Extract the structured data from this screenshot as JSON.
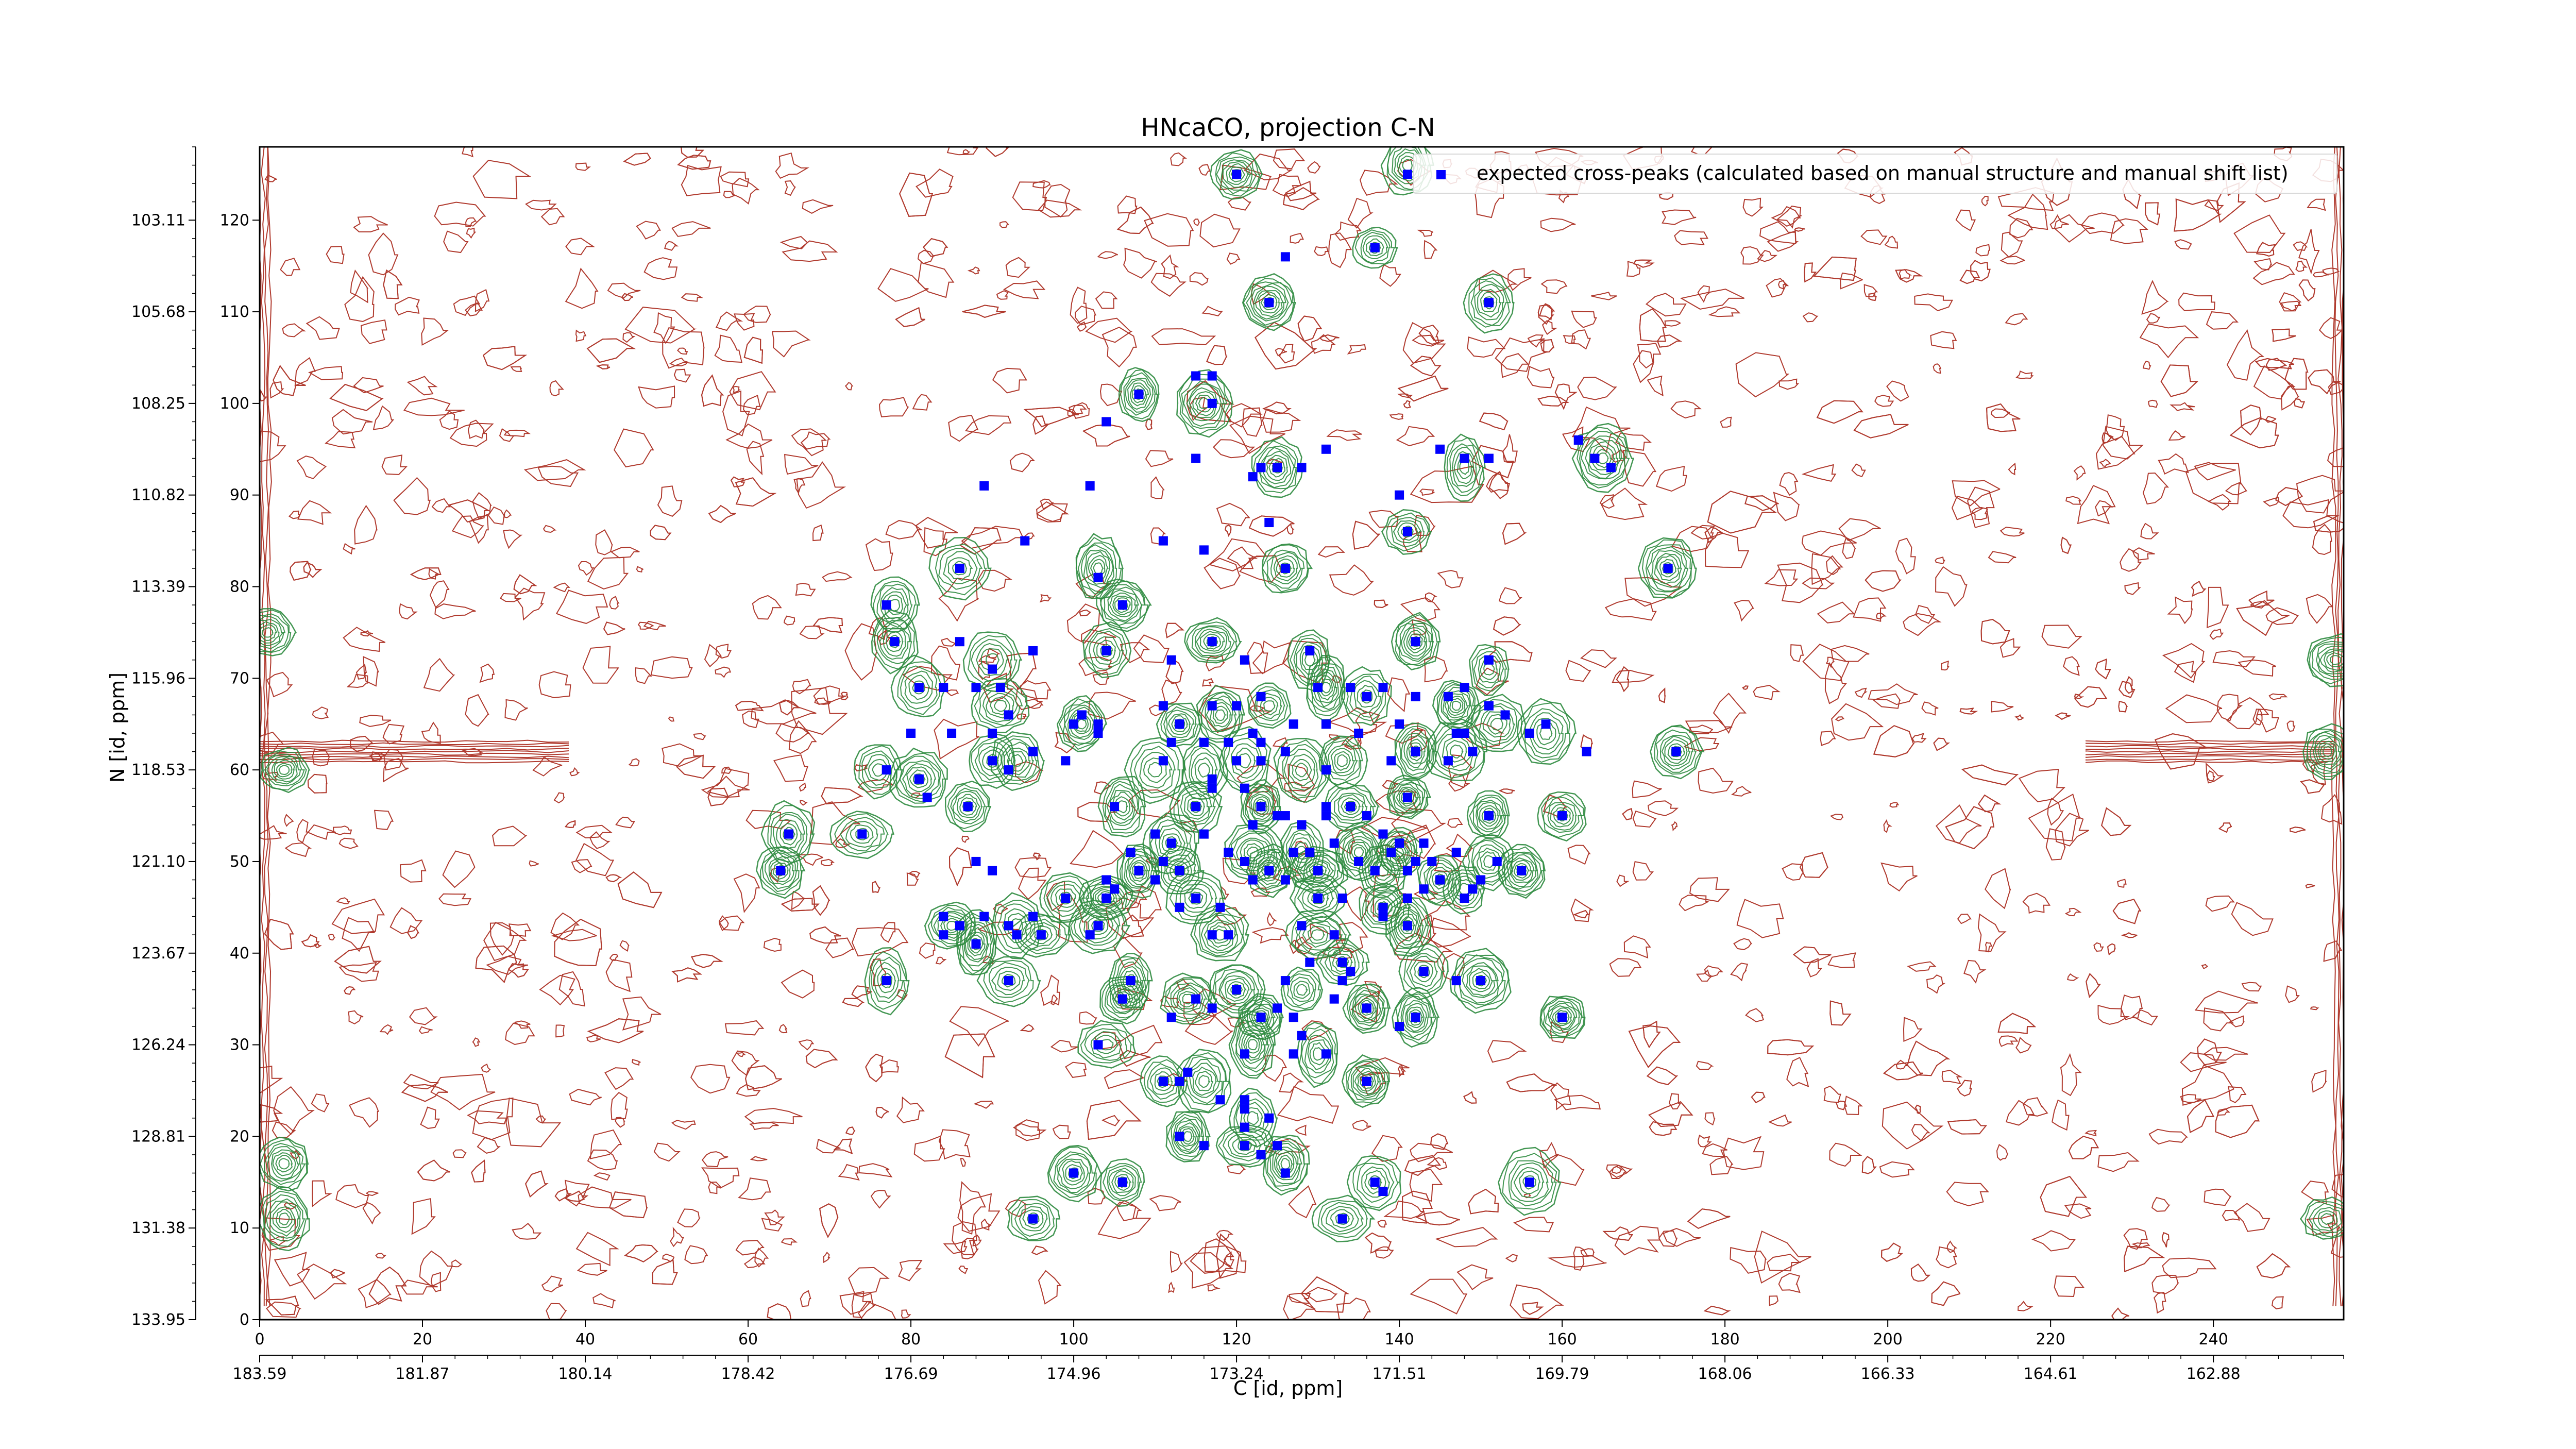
{
  "chart_data": {
    "type": "contour",
    "title": "HNcaCO, projection C-N",
    "xlabel": "C [id, ppm]",
    "ylabel": "N [id, ppm]",
    "legend": [
      "expected cross-peaks (calculated based on manual structure and manual shift list)"
    ],
    "legend_position": "top-right",
    "x_index_range": [
      0,
      256
    ],
    "y_index_range": [
      0,
      128
    ],
    "x_index_ticks": [
      "0",
      "20",
      "40",
      "60",
      "80",
      "100",
      "120",
      "140",
      "160",
      "180",
      "200",
      "220",
      "240"
    ],
    "x_ppm_ticks": [
      "183.59",
      "181.87",
      "180.14",
      "178.42",
      "176.69",
      "174.96",
      "173.24",
      "171.51",
      "169.79",
      "168.06",
      "166.33",
      "164.61",
      "162.88"
    ],
    "y_index_ticks": [
      "0",
      "10",
      "20",
      "30",
      "40",
      "50",
      "60",
      "70",
      "80",
      "90",
      "100",
      "110",
      "120"
    ],
    "y_ppm_ticks": [
      "133.95",
      "131.38",
      "128.81",
      "126.24",
      "123.67",
      "121.10",
      "118.53",
      "115.96",
      "113.39",
      "110.82",
      "108.25",
      "105.68",
      "103.11"
    ],
    "colors": {
      "positive_contours": "#2e8b3f",
      "negative_contours": "#b03a2e",
      "peaks": "#0000ff"
    },
    "expected_peaks": [
      [
        120,
        125
      ],
      [
        141,
        125
      ],
      [
        137,
        117
      ],
      [
        124,
        111
      ],
      [
        151,
        111
      ],
      [
        126,
        116
      ],
      [
        108,
        101
      ],
      [
        115,
        103
      ],
      [
        117,
        103
      ],
      [
        117,
        100
      ],
      [
        104,
        98
      ],
      [
        115,
        94
      ],
      [
        123,
        93
      ],
      [
        125,
        93
      ],
      [
        128,
        93
      ],
      [
        131,
        95
      ],
      [
        145,
        95
      ],
      [
        148,
        94
      ],
      [
        151,
        94
      ],
      [
        164,
        94
      ],
      [
        162,
        96
      ],
      [
        166,
        93
      ],
      [
        122,
        92
      ],
      [
        140,
        90
      ],
      [
        89,
        91
      ],
      [
        102,
        91
      ],
      [
        124,
        87
      ],
      [
        141,
        86
      ],
      [
        111,
        85
      ],
      [
        116,
        84
      ],
      [
        94,
        85
      ],
      [
        86,
        82
      ],
      [
        103,
        81
      ],
      [
        126,
        82
      ],
      [
        173,
        82
      ],
      [
        77,
        78
      ],
      [
        106,
        78
      ],
      [
        78,
        74
      ],
      [
        117,
        74
      ],
      [
        112,
        72
      ],
      [
        121,
        72
      ],
      [
        142,
        74
      ],
      [
        129,
        73
      ],
      [
        151,
        72
      ],
      [
        104,
        73
      ],
      [
        86,
        74
      ],
      [
        90,
        71
      ],
      [
        95,
        73
      ],
      [
        81,
        69
      ],
      [
        84,
        69
      ],
      [
        88,
        69
      ],
      [
        91,
        69
      ],
      [
        92,
        66
      ],
      [
        100,
        65
      ],
      [
        101,
        66
      ],
      [
        103,
        65
      ],
      [
        111,
        67
      ],
      [
        113,
        65
      ],
      [
        117,
        67
      ],
      [
        120,
        67
      ],
      [
        123,
        68
      ],
      [
        130,
        69
      ],
      [
        134,
        69
      ],
      [
        136,
        68
      ],
      [
        138,
        69
      ],
      [
        142,
        68
      ],
      [
        146,
        68
      ],
      [
        148,
        69
      ],
      [
        151,
        67
      ],
      [
        153,
        66
      ],
      [
        158,
        65
      ],
      [
        163,
        62
      ],
      [
        174,
        62
      ],
      [
        156,
        64
      ],
      [
        80,
        64
      ],
      [
        85,
        64
      ],
      [
        90,
        64
      ],
      [
        103,
        64
      ],
      [
        112,
        63
      ],
      [
        116,
        63
      ],
      [
        119,
        63
      ],
      [
        122,
        64
      ],
      [
        127,
        65
      ],
      [
        131,
        65
      ],
      [
        135,
        64
      ],
      [
        140,
        65
      ],
      [
        148,
        64
      ],
      [
        126,
        62
      ],
      [
        123,
        61
      ],
      [
        123,
        63
      ],
      [
        131,
        60
      ],
      [
        139,
        61
      ],
      [
        142,
        62
      ],
      [
        146,
        61
      ],
      [
        149,
        62
      ],
      [
        147,
        64
      ],
      [
        99,
        61
      ],
      [
        111,
        61
      ],
      [
        117,
        59
      ],
      [
        120,
        61
      ],
      [
        90,
        61
      ],
      [
        92,
        60
      ],
      [
        95,
        62
      ],
      [
        81,
        59
      ],
      [
        77,
        60
      ],
      [
        82,
        57
      ],
      [
        87,
        56
      ],
      [
        105,
        56
      ],
      [
        115,
        56
      ],
      [
        117,
        58
      ],
      [
        121,
        58
      ],
      [
        123,
        56
      ],
      [
        126,
        55
      ],
      [
        131,
        56
      ],
      [
        134,
        56
      ],
      [
        141,
        57
      ],
      [
        151,
        55
      ],
      [
        160,
        55
      ],
      [
        65,
        53
      ],
      [
        74,
        53
      ],
      [
        110,
        53
      ],
      [
        112,
        52
      ],
      [
        116,
        53
      ],
      [
        122,
        54
      ],
      [
        125,
        55
      ],
      [
        128,
        54
      ],
      [
        131,
        55
      ],
      [
        136,
        55
      ],
      [
        138,
        53
      ],
      [
        140,
        52
      ],
      [
        143,
        52
      ],
      [
        147,
        51
      ],
      [
        152,
        50
      ],
      [
        107,
        51
      ],
      [
        111,
        50
      ],
      [
        113,
        49
      ],
      [
        119,
        51
      ],
      [
        121,
        50
      ],
      [
        124,
        49
      ],
      [
        127,
        51
      ],
      [
        129,
        51
      ],
      [
        132,
        52
      ],
      [
        135,
        50
      ],
      [
        139,
        51
      ],
      [
        142,
        50
      ],
      [
        144,
        50
      ],
      [
        88,
        50
      ],
      [
        90,
        49
      ],
      [
        108,
        49
      ],
      [
        110,
        48
      ],
      [
        122,
        48
      ],
      [
        126,
        48
      ],
      [
        130,
        49
      ],
      [
        137,
        49
      ],
      [
        141,
        49
      ],
      [
        143,
        47
      ],
      [
        145,
        48
      ],
      [
        150,
        48
      ],
      [
        155,
        49
      ],
      [
        64,
        49
      ],
      [
        99,
        46
      ],
      [
        104,
        46
      ],
      [
        104,
        48
      ],
      [
        105,
        47
      ],
      [
        113,
        45
      ],
      [
        115,
        46
      ],
      [
        118,
        45
      ],
      [
        130,
        46
      ],
      [
        133,
        46
      ],
      [
        138,
        45
      ],
      [
        141,
        46
      ],
      [
        148,
        46
      ],
      [
        149,
        47
      ],
      [
        84,
        44
      ],
      [
        86,
        43
      ],
      [
        89,
        44
      ],
      [
        92,
        43
      ],
      [
        95,
        44
      ],
      [
        103,
        43
      ],
      [
        117,
        42
      ],
      [
        119,
        42
      ],
      [
        128,
        43
      ],
      [
        132,
        42
      ],
      [
        138,
        44
      ],
      [
        141,
        43
      ],
      [
        84,
        42
      ],
      [
        88,
        41
      ],
      [
        93,
        42
      ],
      [
        96,
        42
      ],
      [
        102,
        42
      ],
      [
        129,
        39
      ],
      [
        133,
        39
      ],
      [
        134,
        38
      ],
      [
        143,
        38
      ],
      [
        147,
        37
      ],
      [
        150,
        37
      ],
      [
        107,
        37
      ],
      [
        120,
        36
      ],
      [
        126,
        37
      ],
      [
        133,
        37
      ],
      [
        77,
        37
      ],
      [
        92,
        37
      ],
      [
        106,
        35
      ],
      [
        115,
        35
      ],
      [
        112,
        33
      ],
      [
        117,
        34
      ],
      [
        123,
        33
      ],
      [
        125,
        34
      ],
      [
        127,
        33
      ],
      [
        132,
        35
      ],
      [
        136,
        34
      ],
      [
        140,
        32
      ],
      [
        142,
        33
      ],
      [
        160,
        33
      ],
      [
        103,
        30
      ],
      [
        121,
        29
      ],
      [
        127,
        29
      ],
      [
        131,
        29
      ],
      [
        128,
        31
      ],
      [
        136,
        26
      ],
      [
        111,
        26
      ],
      [
        113,
        26
      ],
      [
        114,
        27
      ],
      [
        118,
        24
      ],
      [
        121,
        24
      ],
      [
        124,
        22
      ],
      [
        121,
        23
      ],
      [
        121,
        21
      ],
      [
        113,
        20
      ],
      [
        116,
        19
      ],
      [
        121,
        19
      ],
      [
        125,
        19
      ],
      [
        100,
        16
      ],
      [
        106,
        15
      ],
      [
        123,
        18
      ],
      [
        126,
        16
      ],
      [
        137,
        15
      ],
      [
        138,
        14
      ],
      [
        156,
        15
      ],
      [
        95,
        11
      ],
      [
        133,
        11
      ]
    ],
    "positive_contour_peaks": [
      [
        120,
        125
      ],
      [
        141,
        126
      ],
      [
        137,
        117
      ],
      [
        124,
        111
      ],
      [
        151,
        111
      ],
      [
        108,
        101
      ],
      [
        116,
        100
      ],
      [
        125,
        93
      ],
      [
        148,
        93
      ],
      [
        165,
        94
      ],
      [
        141,
        86
      ],
      [
        86,
        82
      ],
      [
        103,
        82
      ],
      [
        126,
        82
      ],
      [
        173,
        82
      ],
      [
        78,
        78
      ],
      [
        106,
        78
      ],
      [
        78,
        74
      ],
      [
        117,
        74
      ],
      [
        142,
        74
      ],
      [
        129,
        72
      ],
      [
        151,
        71
      ],
      [
        104,
        73
      ],
      [
        90,
        72
      ],
      [
        81,
        69
      ],
      [
        91,
        67
      ],
      [
        101,
        65
      ],
      [
        113,
        65
      ],
      [
        118,
        66
      ],
      [
        124,
        67
      ],
      [
        131,
        69
      ],
      [
        136,
        68
      ],
      [
        147,
        67
      ],
      [
        152,
        65
      ],
      [
        158,
        64
      ],
      [
        174,
        62
      ],
      [
        81,
        59
      ],
      [
        76,
        60
      ],
      [
        87,
        56
      ],
      [
        93,
        61
      ],
      [
        90,
        61
      ],
      [
        110,
        60
      ],
      [
        116,
        60
      ],
      [
        121,
        61
      ],
      [
        128,
        60
      ],
      [
        133,
        61
      ],
      [
        142,
        62
      ],
      [
        147,
        62
      ],
      [
        106,
        56
      ],
      [
        115,
        56
      ],
      [
        123,
        56
      ],
      [
        134,
        56
      ],
      [
        141,
        57
      ],
      [
        151,
        55
      ],
      [
        160,
        55
      ],
      [
        65,
        53
      ],
      [
        74,
        53
      ],
      [
        112,
        52
      ],
      [
        122,
        51
      ],
      [
        128,
        51
      ],
      [
        135,
        51
      ],
      [
        140,
        51
      ],
      [
        151,
        50
      ],
      [
        108,
        49
      ],
      [
        113,
        49
      ],
      [
        124,
        49
      ],
      [
        130,
        49
      ],
      [
        138,
        49
      ],
      [
        145,
        48
      ],
      [
        155,
        49
      ],
      [
        64,
        49
      ],
      [
        99,
        46
      ],
      [
        104,
        46
      ],
      [
        115,
        46
      ],
      [
        130,
        46
      ],
      [
        138,
        45
      ],
      [
        148,
        47
      ],
      [
        85,
        43
      ],
      [
        93,
        43
      ],
      [
        103,
        43
      ],
      [
        118,
        42
      ],
      [
        130,
        42
      ],
      [
        141,
        43
      ],
      [
        88,
        41
      ],
      [
        96,
        42
      ],
      [
        133,
        39
      ],
      [
        143,
        38
      ],
      [
        150,
        37
      ],
      [
        107,
        37
      ],
      [
        120,
        36
      ],
      [
        128,
        36
      ],
      [
        77,
        37
      ],
      [
        92,
        37
      ],
      [
        106,
        35
      ],
      [
        114,
        35
      ],
      [
        123,
        33
      ],
      [
        136,
        34
      ],
      [
        142,
        33
      ],
      [
        160,
        33
      ],
      [
        104,
        30
      ],
      [
        122,
        30
      ],
      [
        130,
        29
      ],
      [
        136,
        26
      ],
      [
        111,
        26
      ],
      [
        116,
        26
      ],
      [
        122,
        22
      ],
      [
        114,
        20
      ],
      [
        121,
        19
      ],
      [
        126,
        17
      ],
      [
        100,
        16
      ],
      [
        106,
        15
      ],
      [
        137,
        15
      ],
      [
        156,
        15
      ],
      [
        95,
        11
      ],
      [
        133,
        11
      ],
      [
        3,
        17
      ],
      [
        3,
        11
      ],
      [
        3,
        60
      ],
      [
        1,
        75
      ],
      [
        254,
        62
      ],
      [
        255,
        72
      ],
      [
        254,
        11
      ]
    ]
  }
}
